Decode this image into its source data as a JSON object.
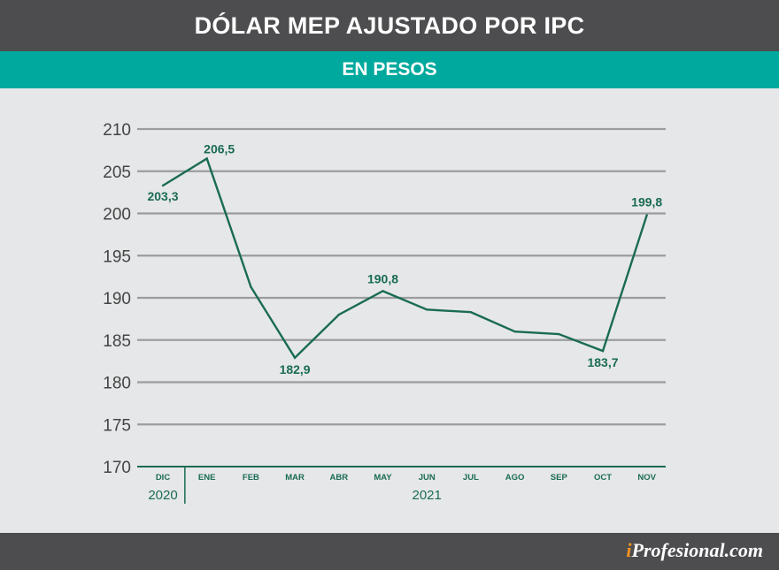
{
  "header": {
    "title": "DÓLAR MEP AJUSTADO POR IPC",
    "subtitle": "EN PESOS"
  },
  "footer": {
    "brand_prefix": "i",
    "brand_rest": "Profesional.com"
  },
  "colors": {
    "line": "#1a6b55",
    "label": "#1a6b55",
    "grid": "#9a9c9e",
    "axis_text": "#444444"
  },
  "chart_data": {
    "type": "line",
    "categories": [
      "DIC",
      "ENE",
      "FEB",
      "MAR",
      "ABR",
      "MAY",
      "JUN",
      "JUL",
      "AGO",
      "SEP",
      "OCT",
      "NOV"
    ],
    "year_labels": [
      {
        "label": "2020",
        "start": 0,
        "end": 0
      },
      {
        "label": "2021",
        "start": 1,
        "end": 11
      }
    ],
    "series": [
      {
        "values": [
          203.3,
          206.5,
          191.3,
          182.9,
          188.0,
          190.8,
          188.6,
          188.3,
          186.0,
          185.7,
          183.7,
          199.8
        ]
      }
    ],
    "data_labels": [
      {
        "index": 0,
        "text": "203,3"
      },
      {
        "index": 1,
        "text": "206,5"
      },
      {
        "index": 3,
        "text": "182,9"
      },
      {
        "index": 5,
        "text": "190,8"
      },
      {
        "index": 10,
        "text": "183,7"
      },
      {
        "index": 11,
        "text": "199,8"
      }
    ],
    "y_ticks": [
      210,
      205,
      200,
      195,
      190,
      185,
      180,
      175,
      170
    ],
    "ylim": [
      170,
      210
    ],
    "grid": true,
    "legend": "none"
  }
}
